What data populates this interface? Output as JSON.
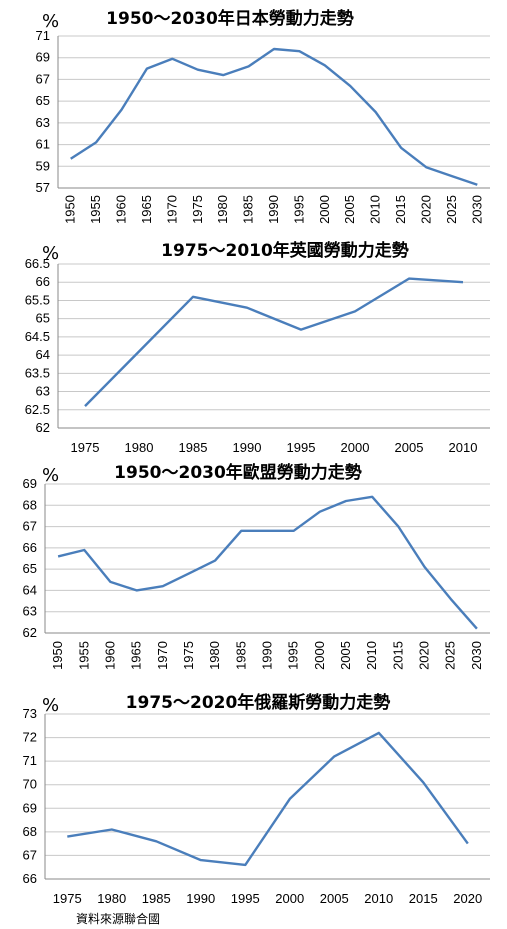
{
  "chart_data": [
    {
      "type": "line",
      "title": "1950～2030年日本勞動力走勢",
      "unit": "%",
      "x": [
        "1950",
        "1955",
        "1960",
        "1965",
        "1970",
        "1975",
        "1980",
        "1985",
        "1990",
        "1995",
        "2000",
        "2005",
        "2010",
        "2015",
        "2020",
        "2025",
        "2030"
      ],
      "values": [
        59.7,
        61.2,
        64.2,
        68.0,
        68.9,
        67.9,
        67.4,
        68.2,
        69.8,
        69.6,
        68.3,
        66.4,
        64.0,
        60.7,
        58.9,
        58.1,
        57.3
      ],
      "yticks": [
        "57",
        "59",
        "61",
        "63",
        "65",
        "67",
        "69",
        "71"
      ],
      "ylim": [
        57,
        71
      ],
      "x_rotated": true,
      "grid": true
    },
    {
      "type": "line",
      "title": "1975～2010年英國勞動力走勢",
      "unit": "%",
      "x": [
        "1975",
        "1980",
        "1985",
        "1990",
        "1995",
        "2000",
        "2005",
        "2010"
      ],
      "values": [
        62.6,
        64.1,
        65.6,
        65.3,
        64.7,
        65.2,
        66.1,
        66.0
      ],
      "yticks": [
        "62",
        "62.5",
        "63",
        "63.5",
        "64",
        "64.5",
        "65",
        "65.5",
        "66",
        "66.5"
      ],
      "ylim": [
        62,
        66.5
      ],
      "x_rotated": false,
      "grid": true
    },
    {
      "type": "line",
      "title": "1950～2030年歐盟勞動力走勢",
      "unit": "%",
      "x": [
        "1950",
        "1955",
        "1960",
        "1965",
        "1970",
        "1975",
        "1980",
        "1985",
        "1990",
        "1995",
        "2000",
        "2005",
        "2010",
        "2015",
        "2020",
        "2025",
        "2030"
      ],
      "values": [
        65.6,
        65.9,
        64.4,
        64.0,
        64.2,
        64.8,
        65.4,
        66.8,
        66.8,
        66.8,
        67.7,
        68.2,
        68.4,
        67.0,
        65.1,
        63.6,
        62.2
      ],
      "yticks": [
        "62",
        "63",
        "64",
        "65",
        "66",
        "67",
        "68",
        "69"
      ],
      "ylim": [
        62,
        69
      ],
      "x_rotated": true,
      "grid": true
    },
    {
      "type": "line",
      "title": "1975～2020年俄羅斯勞動力走勢",
      "unit": "%",
      "x": [
        "1975",
        "1980",
        "1985",
        "1990",
        "1995",
        "2000",
        "2005",
        "2010",
        "2015",
        "2020"
      ],
      "values": [
        67.8,
        68.1,
        67.6,
        66.8,
        66.6,
        69.4,
        71.2,
        72.2,
        70.1,
        67.5
      ],
      "yticks": [
        "66",
        "67",
        "68",
        "69",
        "70",
        "71",
        "72",
        "73"
      ],
      "ylim": [
        66,
        73
      ],
      "x_rotated": false,
      "grid": true
    }
  ],
  "source_text": "資料來源聯合國",
  "colors": {
    "series": "#4a7ebb",
    "grid": "#c8c8c8"
  }
}
